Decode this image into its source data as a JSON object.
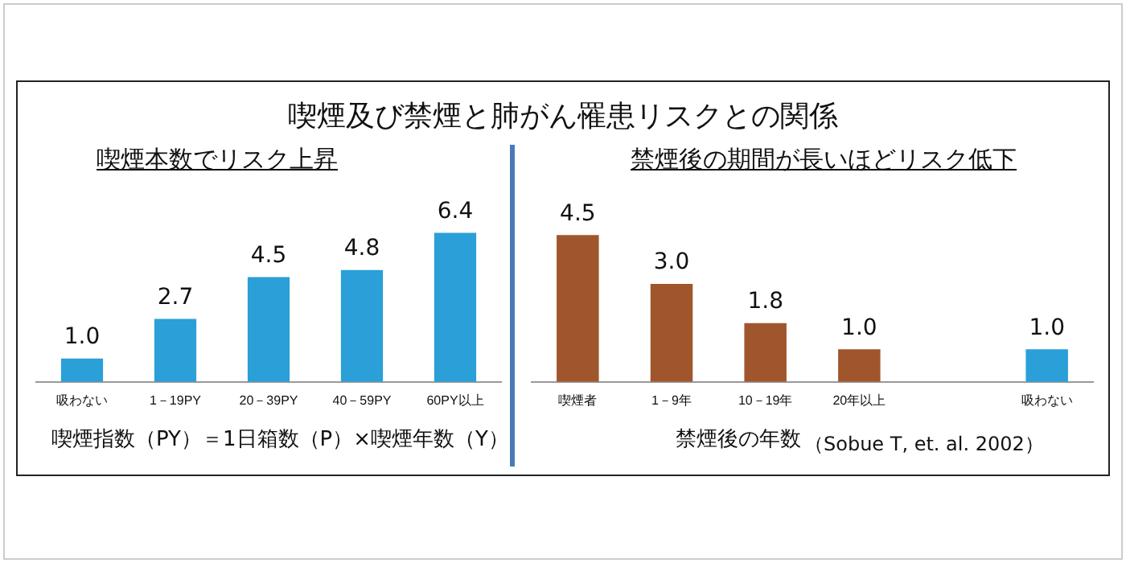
{
  "chart_data": [
    {
      "type": "bar",
      "title": "喫煙及び禁煙と肺がん罹患リスクとの関係",
      "subtitle": "喫煙本数でリスク上昇",
      "xlabel": "喫煙指数（PY）＝1日箱数（P）×喫煙年数（Y）",
      "categories": [
        "吸わない",
        "1－19PY",
        "20－39PY",
        "40－59PY",
        "60PY以上"
      ],
      "values": [
        1.0,
        2.7,
        4.5,
        4.8,
        6.4
      ],
      "value_labels": [
        "1.0",
        "2.7",
        "4.5",
        "4.8",
        "6.4"
      ],
      "colors": [
        "#2a9fd8",
        "#2a9fd8",
        "#2a9fd8",
        "#2a9fd8",
        "#2a9fd8"
      ],
      "grid": false,
      "legend": false,
      "tick_labels": "x"
    },
    {
      "type": "bar",
      "subtitle": "禁煙後の期間が長いほどリスク低下",
      "xlabel": "禁煙後の年数",
      "annotations": [
        "（Sobue T, et. al. 2002）"
      ],
      "categories": [
        "喫煙者",
        "1－9年",
        "10－19年",
        "20年以上",
        null,
        "吸わない"
      ],
      "values": [
        4.5,
        3.0,
        1.8,
        1.0,
        null,
        1.0
      ],
      "value_labels": [
        "4.5",
        "3.0",
        "1.8",
        "1.0",
        null,
        "1.0"
      ],
      "colors": [
        "#a0562c",
        "#a0562c",
        "#a0562c",
        "#a0562c",
        "#a0562c",
        "#2a9fd8"
      ],
      "grid": false,
      "legend": false,
      "tick_labels": "x"
    }
  ]
}
